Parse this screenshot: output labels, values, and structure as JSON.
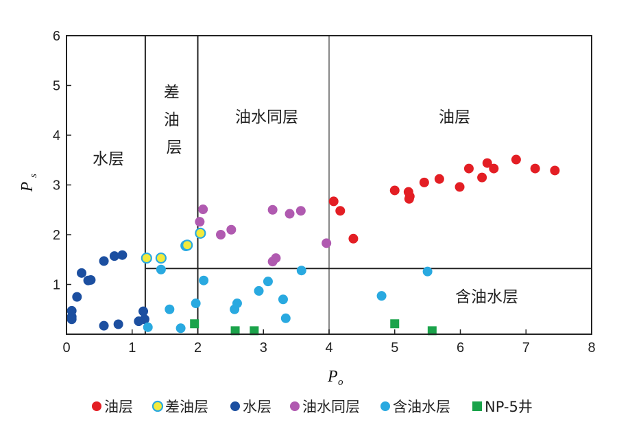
{
  "chart_data": {
    "type": "scatter",
    "x_label": "P",
    "x_label_sub": "o",
    "y_label": "P",
    "y_label_sub": "s",
    "xlim": [
      0,
      8
    ],
    "ylim": [
      0,
      6
    ],
    "x_ticks": [
      "0",
      "1",
      "2",
      "3",
      "4",
      "5",
      "6",
      "7",
      "8"
    ],
    "y_ticks": [
      "1",
      "2",
      "3",
      "4",
      "5",
      "6"
    ],
    "grid": false,
    "legend_position": "bottom",
    "region_labels": {
      "water": "水层",
      "poor_oil": "差油层",
      "oil_water": "油水同层",
      "oil": "油层",
      "oily_water": "含油水层"
    },
    "boundaries": {
      "vertical_full": [
        1.2,
        2.0,
        4.0
      ],
      "horizontal_y": 1.32,
      "horizontal_from_x": 1.2
    },
    "series": [
      {
        "name": "油层",
        "marker": "circle",
        "color": "#e31e24",
        "edge": "#e31e24",
        "points": [
          [
            4.07,
            2.67
          ],
          [
            4.17,
            2.48
          ],
          [
            4.37,
            1.92
          ],
          [
            5.0,
            2.89
          ],
          [
            5.21,
            2.86
          ],
          [
            5.22,
            2.72
          ],
          [
            5.23,
            2.77
          ],
          [
            5.45,
            3.05
          ],
          [
            5.68,
            3.12
          ],
          [
            5.99,
            2.96
          ],
          [
            6.13,
            3.33
          ],
          [
            6.33,
            3.15
          ],
          [
            6.41,
            3.44
          ],
          [
            6.51,
            3.33
          ],
          [
            6.85,
            3.51
          ],
          [
            7.14,
            3.33
          ],
          [
            7.44,
            3.29
          ]
        ]
      },
      {
        "name": "差油层",
        "marker": "circle",
        "color": "#f2ea3c",
        "edge": "#29a9e0",
        "points": [
          [
            1.22,
            1.53
          ],
          [
            1.44,
            1.53
          ],
          [
            1.82,
            1.78
          ],
          [
            1.84,
            1.79
          ],
          [
            2.04,
            2.03
          ]
        ]
      },
      {
        "name": "水层",
        "marker": "circle",
        "color": "#1c4fa0",
        "edge": "#1c4fa0",
        "points": [
          [
            0.08,
            0.47
          ],
          [
            0.08,
            0.35
          ],
          [
            0.08,
            0.3
          ],
          [
            0.16,
            0.75
          ],
          [
            0.23,
            1.23
          ],
          [
            0.33,
            1.08
          ],
          [
            0.37,
            1.09
          ],
          [
            0.57,
            1.47
          ],
          [
            0.73,
            1.57
          ],
          [
            0.85,
            1.59
          ],
          [
            0.57,
            0.17
          ],
          [
            0.79,
            0.2
          ],
          [
            1.1,
            0.26
          ],
          [
            1.17,
            0.46
          ],
          [
            1.19,
            0.3
          ]
        ]
      },
      {
        "name": "油水同层",
        "marker": "circle",
        "color": "#b05ab0",
        "edge": "#b05ab0",
        "points": [
          [
            2.03,
            2.26
          ],
          [
            2.08,
            2.51
          ],
          [
            2.35,
            2.0
          ],
          [
            2.51,
            2.1
          ],
          [
            3.14,
            2.5
          ],
          [
            3.14,
            1.46
          ],
          [
            3.19,
            1.53
          ],
          [
            3.4,
            2.42
          ],
          [
            3.57,
            2.48
          ],
          [
            3.96,
            1.83
          ]
        ]
      },
      {
        "name": "含油水层",
        "marker": "circle",
        "color": "#29a9e0",
        "edge": "#29a9e0",
        "points": [
          [
            1.44,
            1.3
          ],
          [
            1.57,
            0.5
          ],
          [
            1.24,
            0.14
          ],
          [
            1.74,
            0.12
          ],
          [
            1.97,
            0.62
          ],
          [
            2.09,
            1.08
          ],
          [
            2.56,
            0.5
          ],
          [
            2.6,
            0.62
          ],
          [
            2.93,
            0.87
          ],
          [
            3.07,
            1.06
          ],
          [
            3.3,
            0.7
          ],
          [
            3.34,
            0.32
          ],
          [
            3.58,
            1.28
          ],
          [
            4.8,
            0.77
          ],
          [
            5.5,
            1.26
          ]
        ]
      },
      {
        "name": "NP-5井",
        "marker": "square",
        "color": "#1aa34a",
        "edge": "#1aa34a",
        "points": [
          [
            1.95,
            0.21
          ],
          [
            2.57,
            0.07
          ],
          [
            2.86,
            0.07
          ],
          [
            5.0,
            0.21
          ],
          [
            5.57,
            0.07
          ]
        ]
      }
    ]
  }
}
